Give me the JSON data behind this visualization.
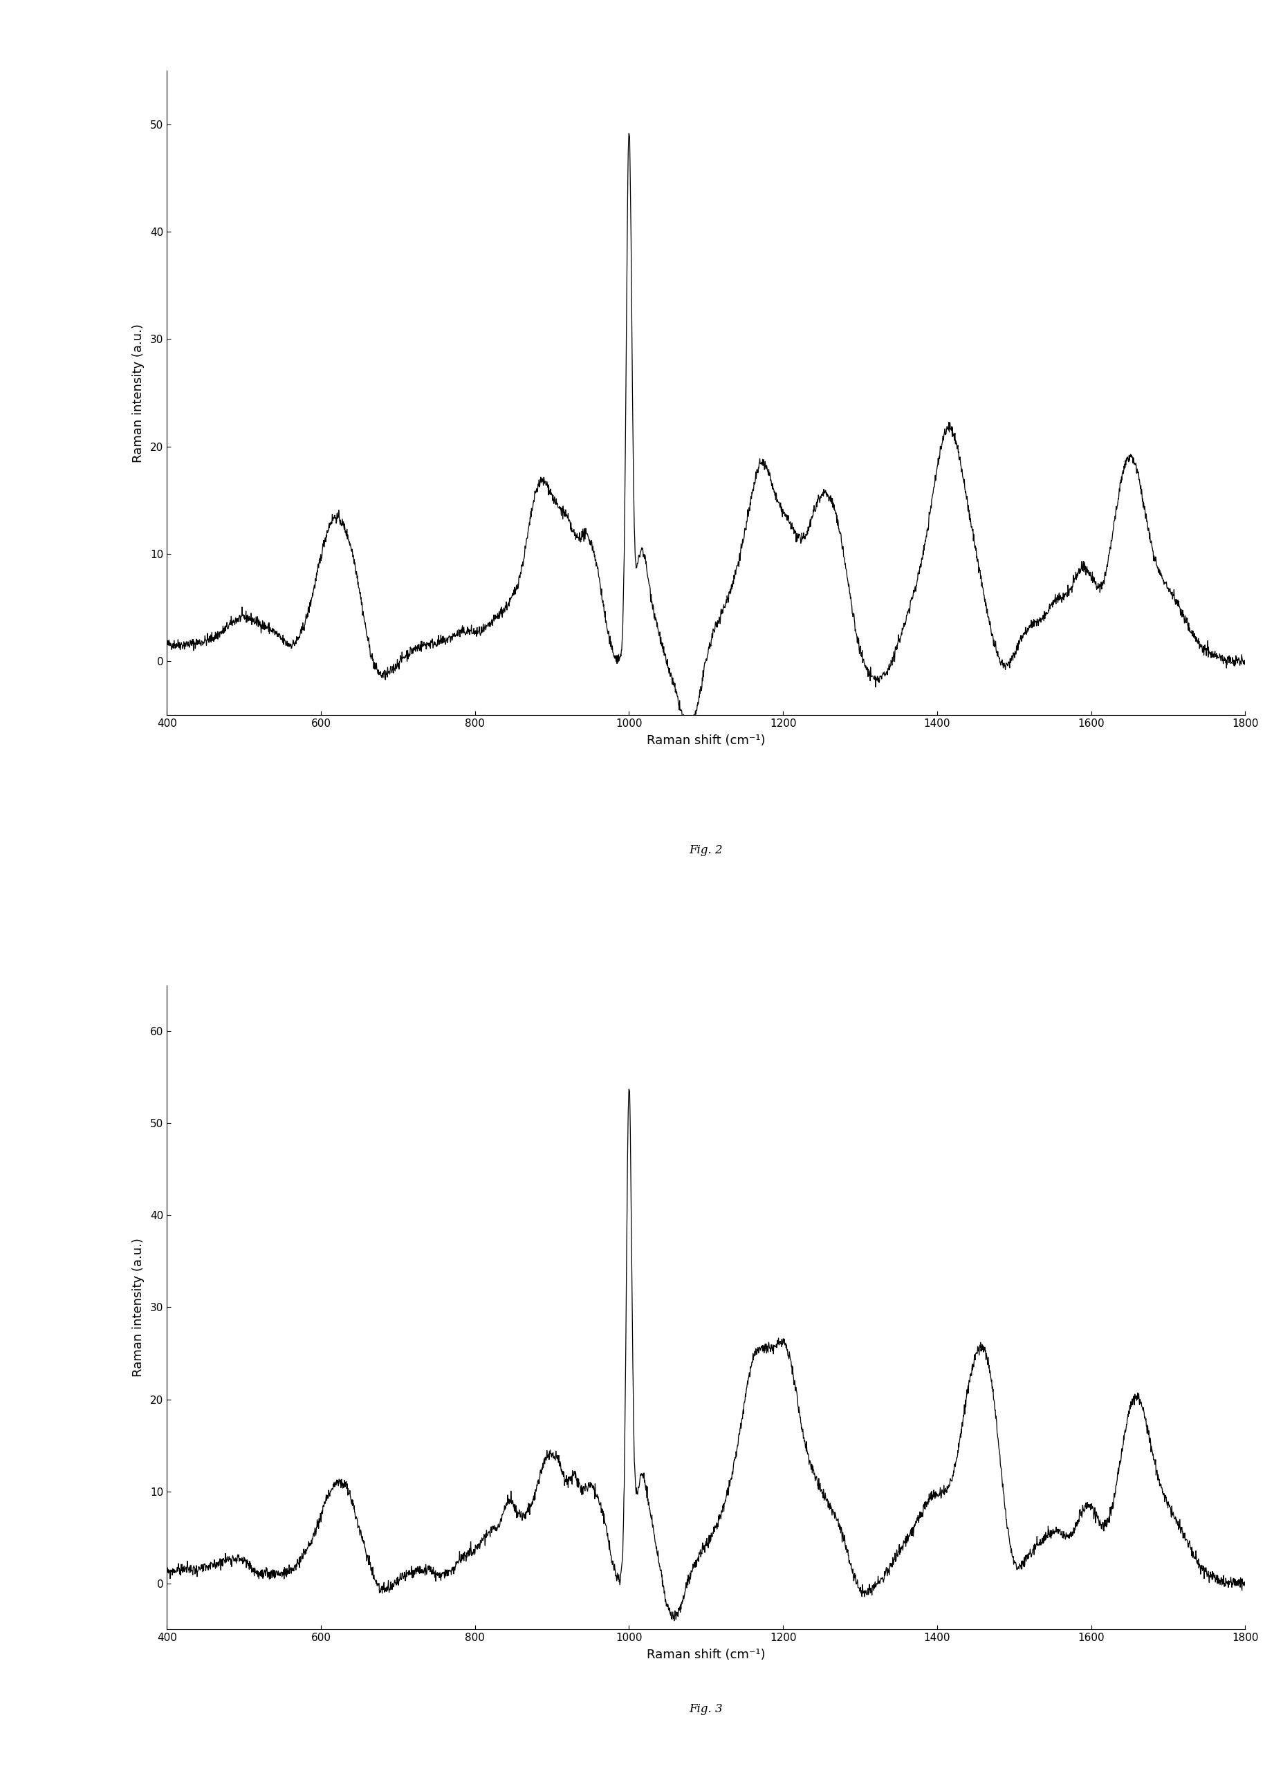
{
  "fig2": {
    "title": "Fig. 2",
    "xlabel": "Raman shift (cm⁻¹)",
    "ylabel": "Raman intensity (a.u.)",
    "xlim": [
      400,
      1800
    ],
    "ylim": [
      -5,
      55
    ],
    "yticks": [
      0,
      10,
      20,
      30,
      40,
      50
    ],
    "xticks": [
      400,
      600,
      800,
      1000,
      1200,
      1400,
      1600,
      1800
    ]
  },
  "fig3": {
    "title": "Fig. 3",
    "xlabel": "Raman shift (cm⁻¹)",
    "ylabel": "Raman intensity (a.u.)",
    "xlim": [
      400,
      1800
    ],
    "ylim": [
      -5,
      65
    ],
    "yticks": [
      0,
      10,
      20,
      30,
      40,
      50,
      60
    ],
    "xticks": [
      400,
      600,
      800,
      1000,
      1200,
      1400,
      1600,
      1800
    ]
  },
  "line_color": "#000000",
  "background_color": "#ffffff",
  "line_width": 0.9
}
